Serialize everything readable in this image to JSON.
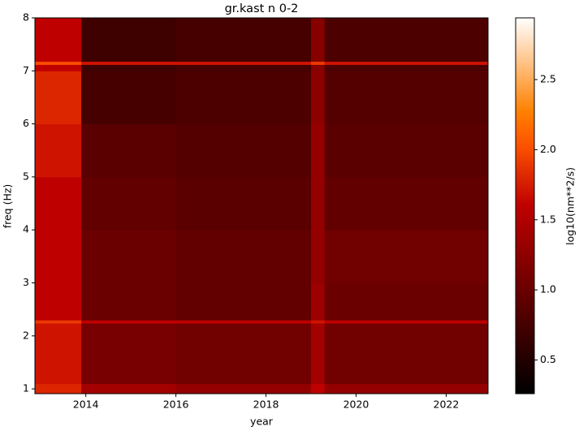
{
  "chart_data": {
    "type": "heatmap",
    "title": "gr.kast n 0-2",
    "x_label": "year",
    "y_label": "freq (Hz)",
    "colorbar_label": "log10(nm**2/s)",
    "colormap": "gist_heat",
    "x_edges": [
      2012.87,
      2013.9,
      2016,
      2019.0,
      2019.3,
      2022.93
    ],
    "y_edges": [
      0.91,
      1.1,
      2.24,
      2.3,
      3,
      4,
      5,
      6,
      7,
      7.12,
      7.18,
      8
    ],
    "values": [
      [
        1.8,
        1.4,
        1.3,
        1.6,
        1.3
      ],
      [
        1.7,
        1.1,
        1.05,
        1.4,
        1.05
      ],
      [
        1.9,
        1.6,
        1.6,
        1.7,
        1.6
      ],
      [
        1.6,
        1.0,
        0.95,
        1.35,
        1.0
      ],
      [
        1.6,
        1.0,
        0.95,
        1.3,
        1.05
      ],
      [
        1.6,
        0.95,
        0.9,
        1.3,
        0.95
      ],
      [
        1.7,
        0.9,
        0.85,
        1.3,
        0.9
      ],
      [
        1.8,
        0.75,
        0.8,
        1.25,
        0.85
      ],
      [
        1.6,
        0.7,
        0.75,
        1.2,
        0.8
      ],
      [
        2.0,
        1.7,
        1.7,
        1.9,
        1.7
      ],
      [
        1.6,
        0.7,
        0.75,
        1.2,
        0.8
      ]
    ],
    "xlim": [
      2012.87,
      2022.93
    ],
    "xticks": [
      2014,
      2016,
      2018,
      2020,
      2022
    ],
    "ylim": [
      0.91,
      8
    ],
    "yticks": [
      1,
      2,
      3,
      4,
      5,
      6,
      7,
      8
    ],
    "clim": [
      0.26,
      2.94
    ],
    "cticks": [
      0.5,
      {
        "value": 1,
        "label": "1.0"
      },
      1.5,
      {
        "value": 2,
        "label": "2.0"
      },
      2.5
    ]
  }
}
